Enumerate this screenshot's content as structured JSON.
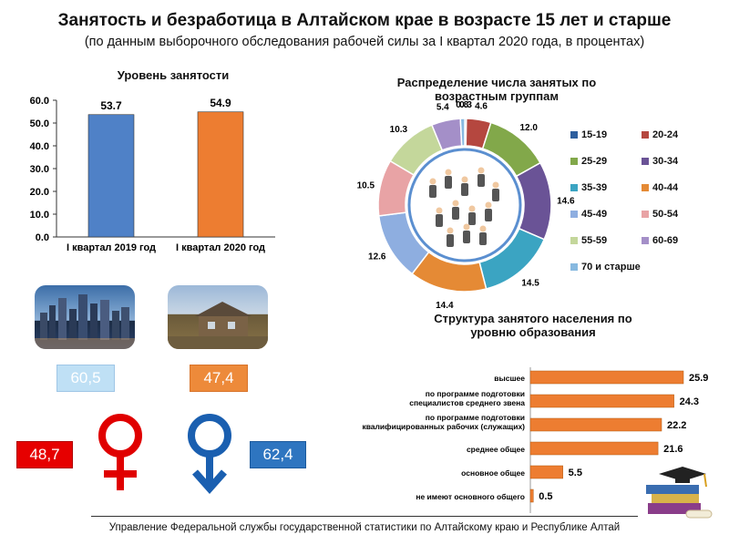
{
  "header": {
    "title": "Занятость и безработица в Алтайском крае в возрасте 15 лет и старше",
    "subtitle": "(по данным выборочного обследования рабочей силы за I квартал 2020 года, в процентах)"
  },
  "footer": {
    "text": "Управление Федеральной службы государственной статистики по Алтайскому краю и Республике Алтай"
  },
  "infographic": {
    "city_value": "60,5",
    "village_value": "47,4",
    "female_value": "48,7",
    "male_value": "62,4",
    "icons": [
      "city-photo",
      "village-photo",
      "female-symbol",
      "male-symbol",
      "graduation-books"
    ]
  },
  "chart_data": [
    {
      "type": "bar",
      "title": "Уровень занятости",
      "categories": [
        "I квартал 2019 год",
        "I квартал 2020 год"
      ],
      "values": [
        53.7,
        54.9
      ],
      "value_labels": [
        "53.7",
        "54.9"
      ],
      "colors": [
        "#4f81c7",
        "#ed7d31"
      ],
      "ylim": [
        0,
        60
      ],
      "yticks": [
        "0.0",
        "10.0",
        "20.0",
        "30.0",
        "40.0",
        "50.0",
        "60.0"
      ]
    },
    {
      "type": "pie",
      "title": "Распределение числа занятых по возрастным группам",
      "labels": [
        "15-19",
        "20-24",
        "25-29",
        "30-34",
        "35-39",
        "40-44",
        "45-49",
        "50-54",
        "55-59",
        "60-69",
        "70 и старше"
      ],
      "values": [
        0.3,
        4.6,
        12.0,
        14.6,
        14.5,
        14.4,
        12.6,
        10.5,
        10.3,
        5.4,
        0.8
      ],
      "value_labels": [
        "0.3",
        "4.6",
        "12.0",
        "14.6",
        "14.5",
        "14.4",
        "12.6",
        "10.5",
        "10.3",
        "5.4",
        "0.8"
      ],
      "colors": [
        "#2e5f9e",
        "#b5473f",
        "#82a84a",
        "#6a5396",
        "#3ba4c2",
        "#e58a35",
        "#8eaee0",
        "#e8a3a5",
        "#c4d79b",
        "#a48fc8",
        "#87b9e0"
      ],
      "legend": "right"
    },
    {
      "type": "bar",
      "orientation": "horizontal",
      "title": "Структура занятого населения по уровню образования",
      "categories": [
        "высшее",
        "по программе подготовки специалистов среднего звена",
        "по программе подготовки квалифицированных рабочих (служащих)",
        "среднее общее",
        "основное общее",
        "не имеют основного общего"
      ],
      "values": [
        25.9,
        24.3,
        22.2,
        21.6,
        5.5,
        0.5
      ],
      "value_labels": [
        "25.9",
        "24.3",
        "22.2",
        "21.6",
        "5.5",
        "0.5"
      ],
      "color": "#ed7d31"
    }
  ]
}
